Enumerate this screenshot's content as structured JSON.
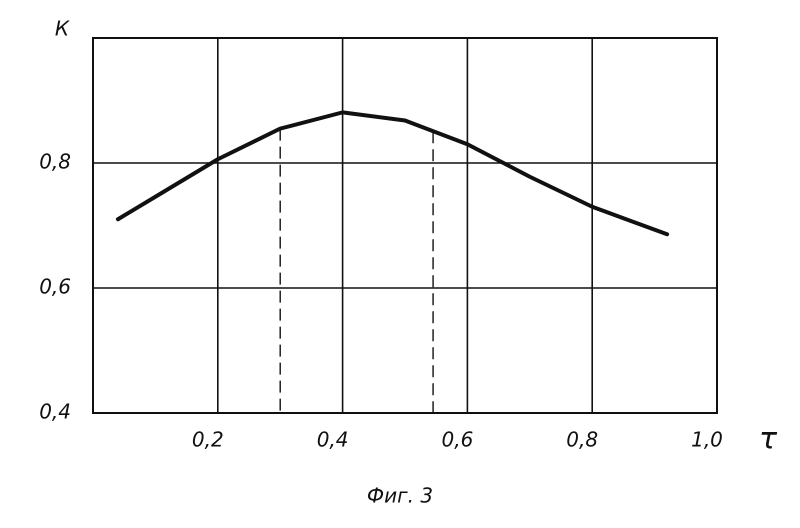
{
  "chart_data": {
    "type": "line",
    "y_label": "К",
    "x_label": "τ",
    "caption": "Фиг. 3",
    "x": [
      0.04,
      0.1,
      0.2,
      0.3,
      0.4,
      0.5,
      0.6,
      0.7,
      0.8,
      0.92
    ],
    "values": [
      0.71,
      0.746,
      0.806,
      0.855,
      0.881,
      0.868,
      0.83,
      0.778,
      0.73,
      0.686
    ],
    "color": "#111111",
    "xlim": [
      0,
      1.0
    ],
    "xticks": [
      {
        "value": 0.2,
        "label": "0,2"
      },
      {
        "value": 0.4,
        "label": "0,4"
      },
      {
        "value": 0.6,
        "label": "0,6"
      },
      {
        "value": 0.8,
        "label": "0,8"
      },
      {
        "value": 1.0,
        "label": "1,0"
      }
    ],
    "ylim": [
      0.4,
      1.0
    ],
    "yticks": [
      {
        "value": 0.4,
        "label": "0,4"
      },
      {
        "value": 0.6,
        "label": "0,6"
      },
      {
        "value": 0.8,
        "label": "0,8"
      }
    ],
    "dashed_x": [
      0.3,
      0.545
    ],
    "grid": true
  }
}
